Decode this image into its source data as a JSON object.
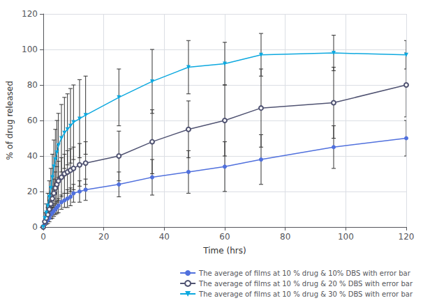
{
  "chart_data": {
    "type": "line",
    "xlabel": "Time (hrs)",
    "ylabel": "% of drug released",
    "xlim": [
      0,
      120
    ],
    "ylim": [
      0,
      120
    ],
    "xticks": [
      0,
      20,
      40,
      60,
      80,
      100,
      120
    ],
    "yticks": [
      0,
      20,
      40,
      60,
      80,
      100,
      120
    ],
    "grid": true,
    "legend": "lower right",
    "x": [
      0,
      0.5,
      1,
      1.5,
      2,
      2.5,
      3,
      3.5,
      4,
      4.5,
      5,
      6,
      7,
      8,
      9,
      10,
      12,
      14,
      25,
      36,
      48,
      60,
      72,
      96,
      120
    ],
    "series": [
      {
        "name": "The average of films at 10 % drug & 10% DBS with error bar",
        "marker": "filled_circle",
        "values": [
          0,
          2,
          3,
          4,
          5,
          7,
          8,
          9,
          10,
          11,
          12,
          14,
          15,
          16,
          17,
          19,
          20,
          21,
          24,
          28,
          31,
          34,
          38,
          45,
          50
        ],
        "yerr": [
          0,
          1,
          1.5,
          2,
          2,
          2.5,
          3,
          3,
          3,
          3.5,
          4,
          4,
          4,
          5,
          5,
          5,
          6,
          6,
          7,
          10,
          12,
          14,
          14,
          12,
          10
        ]
      },
      {
        "name": "The average of films at 10 % drug & 20 % DBS with error bar",
        "marker": "open_circle",
        "values": [
          0,
          3,
          5,
          7,
          10,
          13,
          16,
          19,
          22,
          24,
          26,
          28,
          30,
          31,
          32,
          33,
          35,
          36,
          40,
          48,
          55,
          60,
          67,
          70,
          80
        ],
        "yerr": [
          0,
          2,
          3,
          4,
          5,
          6,
          7,
          8,
          9,
          10,
          11,
          11,
          11,
          12,
          12,
          12,
          12,
          12,
          14,
          18,
          16,
          20,
          22,
          20,
          18
        ]
      },
      {
        "name": "The average of films at 10 % drug & 30 % DBS with error bar",
        "marker": "filled_triangle_down",
        "values": [
          0,
          5,
          8,
          12,
          17,
          22,
          28,
          34,
          38,
          42,
          46,
          50,
          53,
          55,
          57,
          59,
          61,
          63,
          73,
          82,
          90,
          92,
          97,
          98,
          97
        ],
        "yerr": [
          0,
          3,
          5,
          7,
          9,
          11,
          13,
          15,
          17,
          18,
          18,
          19,
          20,
          20,
          21,
          21,
          22,
          22,
          16,
          18,
          15,
          12,
          12,
          10,
          8
        ]
      }
    ]
  }
}
